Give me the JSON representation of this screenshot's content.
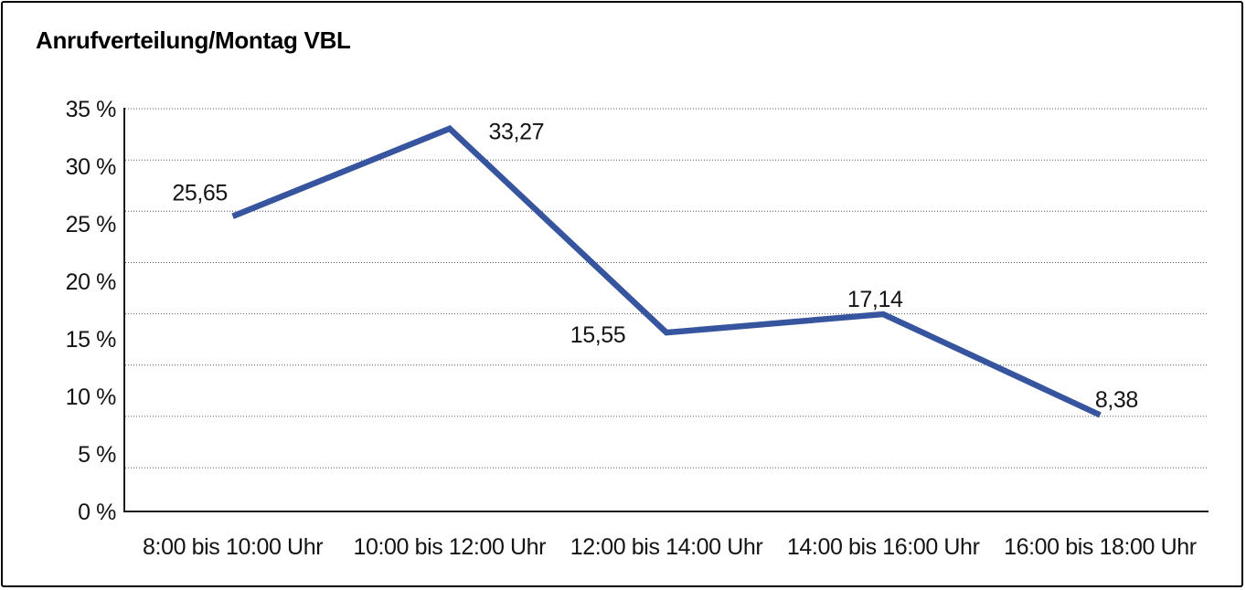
{
  "title": "Anrufverteilung/Montag VBL",
  "chart_data": {
    "type": "line",
    "title": "Anrufverteilung/Montag VBL",
    "categories": [
      "8:00 bis 10:00 Uhr",
      "10:00 bis 12:00 Uhr",
      "12:00 bis 14:00 Uhr",
      "14:00 bis 16:00 Uhr",
      "16:00 bis 18:00 Uhr"
    ],
    "values": [
      25.65,
      33.27,
      15.55,
      17.14,
      8.38
    ],
    "value_labels": [
      "25,65",
      "33,27",
      "15,55",
      "17,14",
      "8,38"
    ],
    "xlabel": "",
    "ylabel": "",
    "ylim": [
      0,
      35
    ],
    "y_ticks": [
      {
        "value": 0,
        "label": "0 %"
      },
      {
        "value": 5,
        "label": "5 %"
      },
      {
        "value": 10,
        "label": "10 %"
      },
      {
        "value": 15,
        "label": "15 %"
      },
      {
        "value": 20,
        "label": "20 %"
      },
      {
        "value": 25,
        "label": "25 %"
      },
      {
        "value": 30,
        "label": "30 %"
      },
      {
        "value": 35,
        "label": "35 %"
      }
    ],
    "grid": "horizontal-dotted",
    "legend": "none",
    "markers": "none"
  },
  "colors": {
    "line": "#37559F",
    "text": "#141414",
    "grid_dots": "#555555",
    "axis": "#1a1a1a",
    "frame_border": "#000000",
    "background": "#FFFFFF"
  }
}
